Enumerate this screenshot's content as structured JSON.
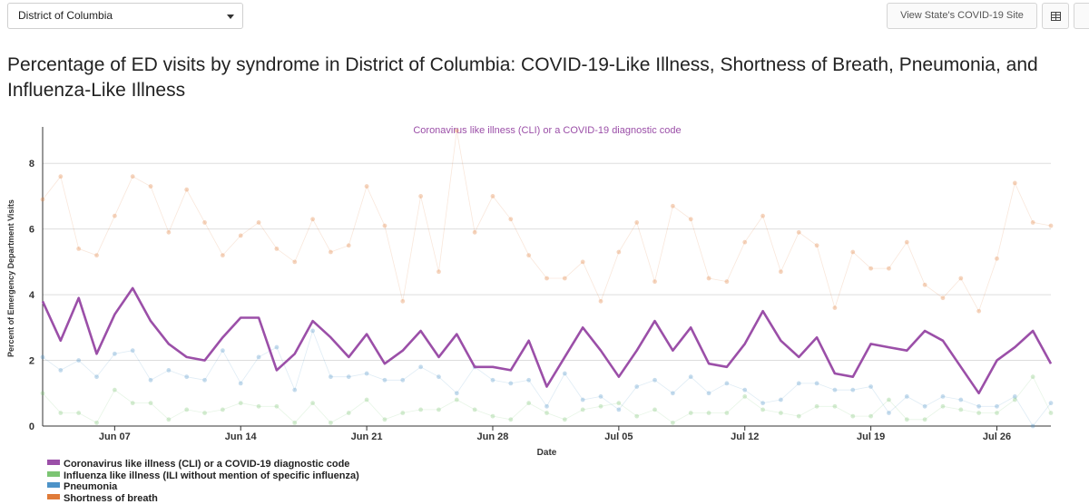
{
  "controls": {
    "state_select": "District of Columbia",
    "site_button": "View State's COVID-19 Site",
    "table_icon": "table-icon"
  },
  "title": "Percentage of ED visits by syndrome in District of Columbia: COVID-19-Like Illness, Shortness of Breath, Pneumonia, and Influenza-Like Illness",
  "colors": {
    "cli": "#9b4fa8",
    "ili": "#7cc573",
    "pneumonia": "#4d93c8",
    "sob": "#e07b39",
    "grid": "#dddddd",
    "axis": "#333333"
  },
  "chart_data": {
    "type": "line",
    "title": "Coronavirus like illness (CLI) or a COVID-19 diagnostic code",
    "xlabel": "Date",
    "ylabel": "Percent of Emergency Department Visits",
    "ylim": [
      0,
      9
    ],
    "yticks": [
      0,
      2,
      4,
      6,
      8
    ],
    "x_start": "2020-06-03",
    "x_end": "2020-07-30",
    "xtick_labels": [
      "Jun 07",
      "Jun 14",
      "Jun 21",
      "Jun 28",
      "Jul 05",
      "Jul 12",
      "Jul 19",
      "Jul 26"
    ],
    "xtick_day_index": [
      4,
      11,
      18,
      25,
      32,
      39,
      46,
      53
    ],
    "series": [
      {
        "name": "Shortness of breath",
        "key": "sob",
        "highlighted": false,
        "values": [
          6.9,
          7.6,
          5.4,
          5.2,
          6.4,
          7.6,
          7.3,
          5.9,
          7.2,
          6.2,
          5.2,
          5.8,
          6.2,
          5.4,
          5.0,
          6.3,
          5.3,
          5.5,
          7.3,
          6.1,
          3.8,
          7.0,
          4.7,
          9.0,
          5.9,
          7.0,
          6.3,
          5.2,
          4.5,
          4.5,
          5.0,
          3.8,
          5.3,
          6.2,
          4.4,
          6.7,
          6.3,
          4.5,
          4.4,
          5.6,
          6.4,
          4.7,
          5.9,
          5.5,
          3.6,
          5.3,
          4.8,
          4.8,
          5.6,
          4.3,
          3.9,
          4.5,
          3.5,
          5.1,
          7.4,
          6.2,
          6.1
        ]
      },
      {
        "name": "Pneumonia",
        "key": "pneumonia",
        "highlighted": false,
        "values": [
          2.1,
          1.7,
          2.0,
          1.5,
          2.2,
          2.3,
          1.4,
          1.7,
          1.5,
          1.4,
          2.3,
          1.3,
          2.1,
          2.4,
          1.1,
          2.9,
          1.5,
          1.5,
          1.6,
          1.4,
          1.4,
          1.8,
          1.5,
          1.0,
          1.8,
          1.4,
          1.3,
          1.4,
          0.6,
          1.6,
          0.8,
          0.9,
          0.5,
          1.2,
          1.4,
          1.0,
          1.5,
          1.0,
          1.3,
          1.1,
          0.7,
          0.8,
          1.3,
          1.3,
          1.1,
          1.1,
          1.2,
          0.4,
          0.9,
          0.6,
          0.9,
          0.8,
          0.6,
          0.6,
          0.9,
          0.0,
          0.7
        ]
      },
      {
        "name": "Influenza like illness (ILI without mention of specific influenza)",
        "key": "ili",
        "highlighted": false,
        "values": [
          1.0,
          0.4,
          0.4,
          0.1,
          1.1,
          0.7,
          0.7,
          0.2,
          0.5,
          0.4,
          0.5,
          0.7,
          0.6,
          0.6,
          0.1,
          0.7,
          0.1,
          0.4,
          0.8,
          0.2,
          0.4,
          0.5,
          0.5,
          0.8,
          0.5,
          0.3,
          0.2,
          0.7,
          0.4,
          0.2,
          0.5,
          0.6,
          0.7,
          0.3,
          0.5,
          0.1,
          0.4,
          0.4,
          0.4,
          0.9,
          0.5,
          0.4,
          0.3,
          0.6,
          0.6,
          0.3,
          0.3,
          0.8,
          0.2,
          0.2,
          0.6,
          0.5,
          0.4,
          0.4,
          0.8,
          1.5,
          0.4
        ]
      },
      {
        "name": "Coronavirus like illness (CLI) or a COVID-19 diagnostic code",
        "key": "cli",
        "highlighted": true,
        "values": [
          3.8,
          2.6,
          3.9,
          2.2,
          3.4,
          4.2,
          3.2,
          2.5,
          2.1,
          2.0,
          2.7,
          3.3,
          3.3,
          1.7,
          2.2,
          3.2,
          2.7,
          2.1,
          2.8,
          1.9,
          2.3,
          2.9,
          2.1,
          2.8,
          1.8,
          1.8,
          1.7,
          2.6,
          1.2,
          2.1,
          3.0,
          2.3,
          1.5,
          2.3,
          3.2,
          2.3,
          3.0,
          1.9,
          1.8,
          2.5,
          3.5,
          2.6,
          2.1,
          2.7,
          1.6,
          1.5,
          2.5,
          2.4,
          2.3,
          2.9,
          2.6,
          1.8,
          1.0,
          2.0,
          2.4,
          2.9,
          1.9
        ]
      }
    ],
    "legend": [
      {
        "label": "Coronavirus like illness (CLI) or a COVID-19 diagnostic code",
        "key": "cli"
      },
      {
        "label": "Influenza like illness (ILI without mention of specific influenza)",
        "key": "ili"
      },
      {
        "label": "Pneumonia",
        "key": "pneumonia"
      },
      {
        "label": "Shortness of breath",
        "key": "sob"
      }
    ]
  }
}
